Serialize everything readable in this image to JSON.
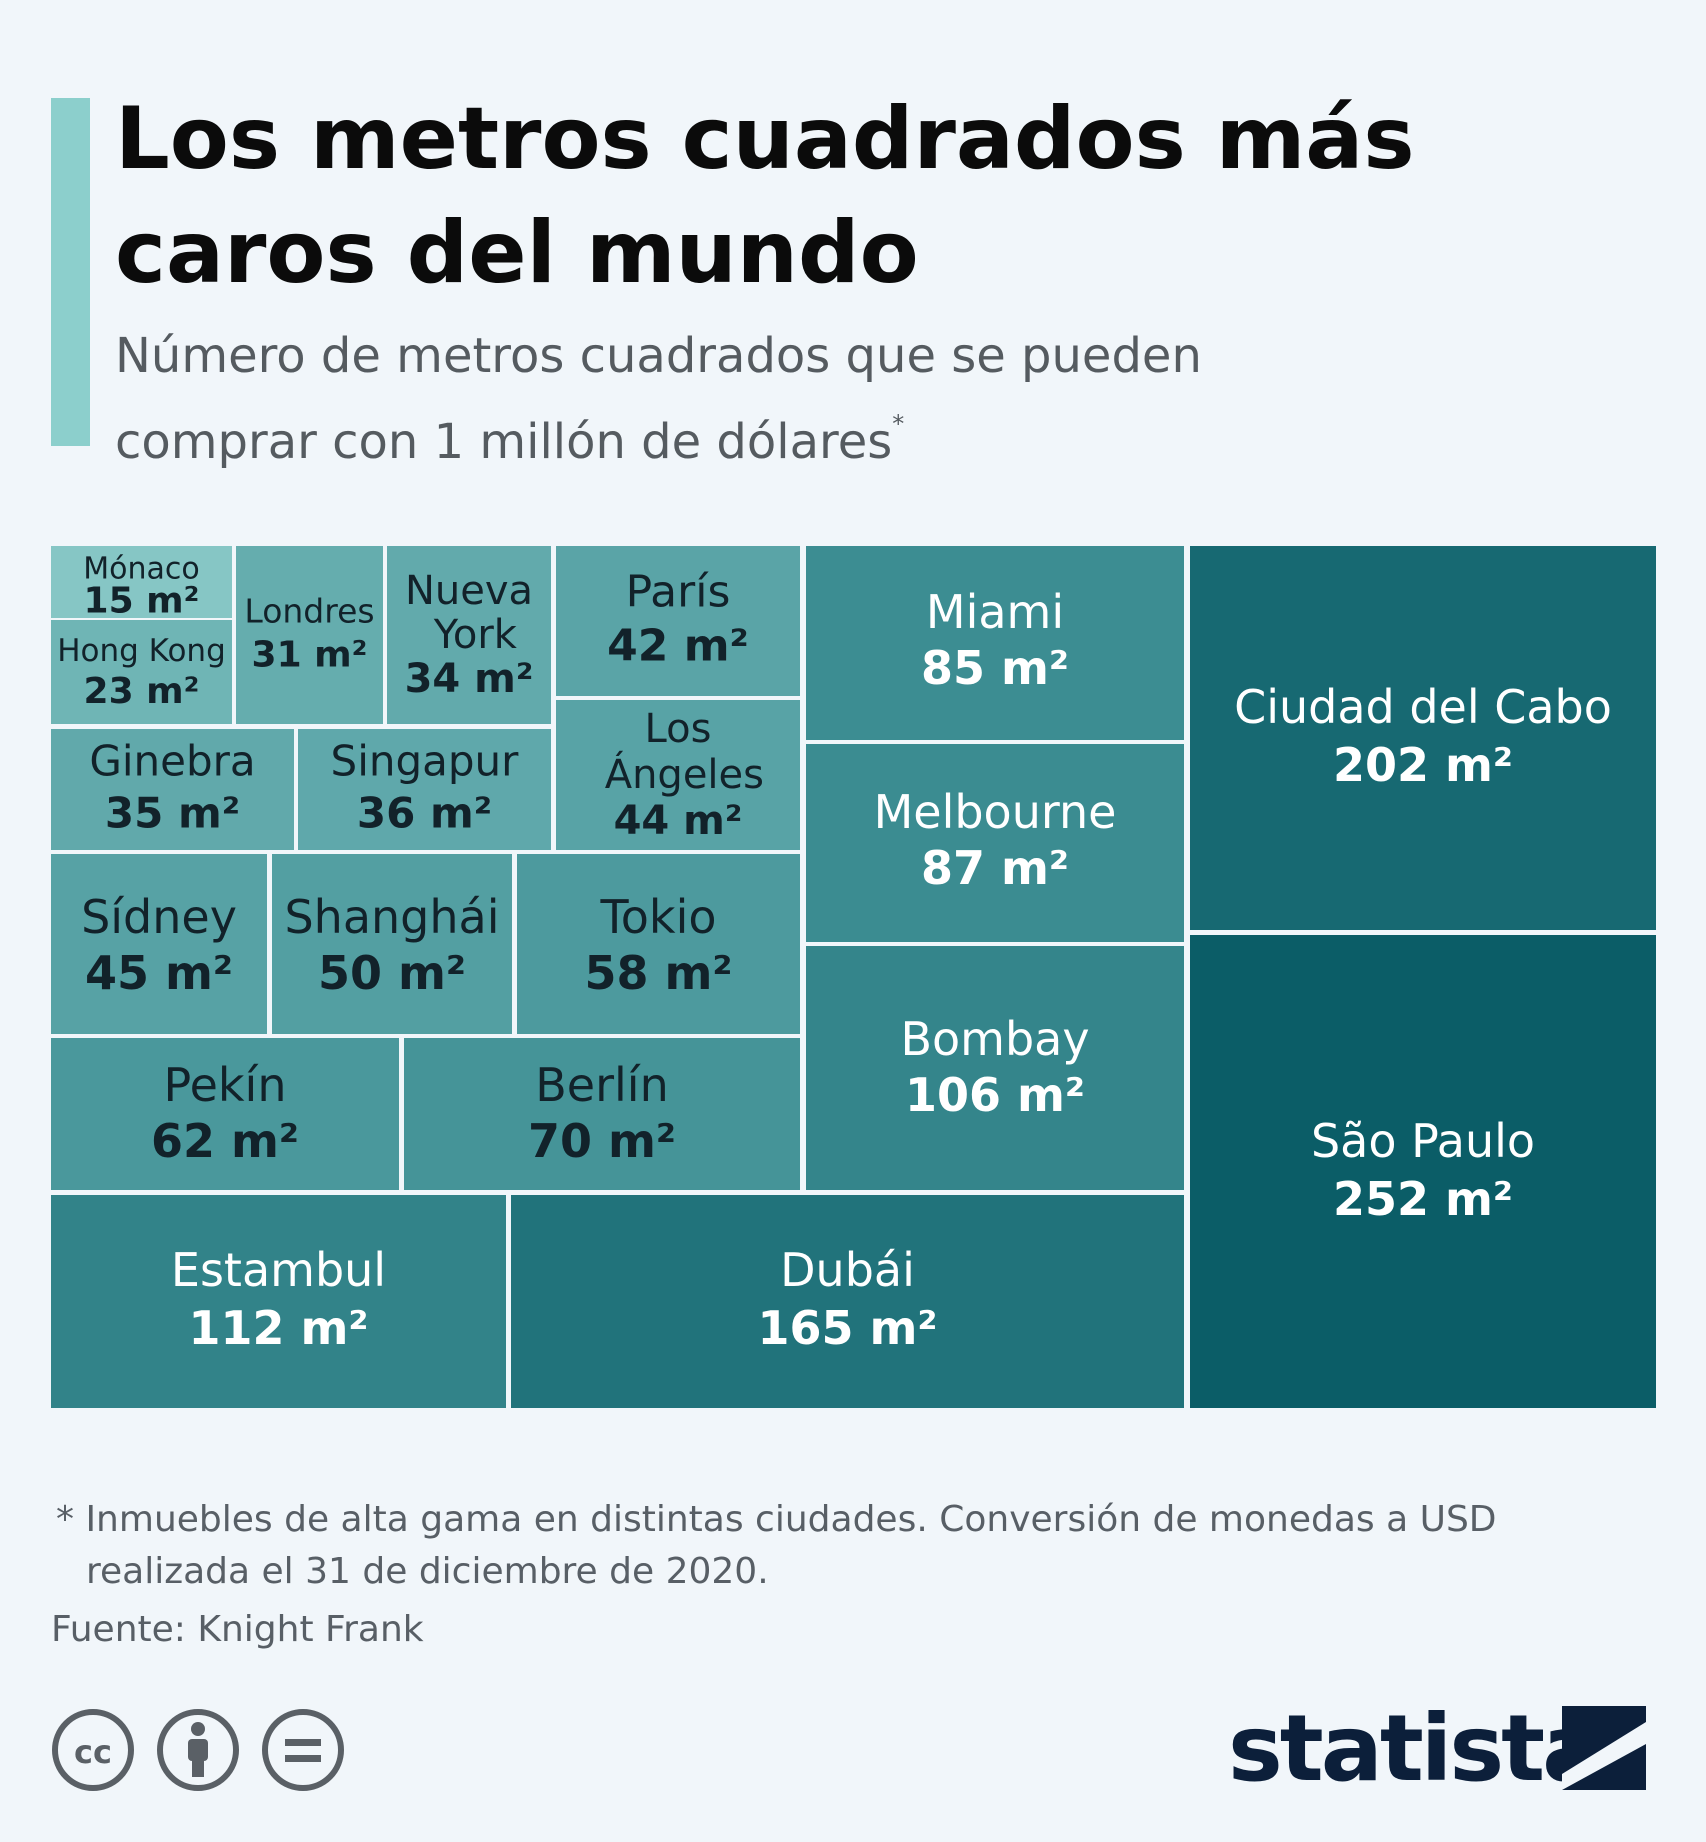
{
  "header": {
    "title": "Los metros cuadrados más caros del mundo",
    "subtitle": "Número de metros cuadrados que se pueden comprar con 1 millón de dólares",
    "subtitle_mark": "*"
  },
  "colors": {
    "accent": "#8ccfcc",
    "page_background": "#f1f6fa",
    "tile_light": "#86c6c5",
    "tile_mid": "#3d8e93",
    "tile_dark": "#0b5d67"
  },
  "chart_data": {
    "type": "treemap",
    "unit": "m²",
    "title": "Los metros cuadrados más caros del mundo",
    "items": [
      {
        "name": "Mónaco",
        "value": 15,
        "label": "15 m²"
      },
      {
        "name": "Hong Kong",
        "value": 23,
        "label": "23 m²"
      },
      {
        "name": "Londres",
        "value": 31,
        "label": "31 m²"
      },
      {
        "name": "Nueva York",
        "value": 34,
        "label": "34 m²"
      },
      {
        "name": "Ginebra",
        "value": 35,
        "label": "35 m²"
      },
      {
        "name": "Singapur",
        "value": 36,
        "label": "36 m²"
      },
      {
        "name": "París",
        "value": 42,
        "label": "42 m²"
      },
      {
        "name": "Los Ángeles",
        "value": 44,
        "label": "44 m²"
      },
      {
        "name": "Sídney",
        "value": 45,
        "label": "45 m²"
      },
      {
        "name": "Shanghái",
        "value": 50,
        "label": "50 m²"
      },
      {
        "name": "Tokio",
        "value": 58,
        "label": "58 m²"
      },
      {
        "name": "Pekín",
        "value": 62,
        "label": "62 m²"
      },
      {
        "name": "Berlín",
        "value": 70,
        "label": "70 m²"
      },
      {
        "name": "Miami",
        "value": 85,
        "label": "85 m²"
      },
      {
        "name": "Melbourne",
        "value": 87,
        "label": "87 m²"
      },
      {
        "name": "Bombay",
        "value": 106,
        "label": "106 m²"
      },
      {
        "name": "Estambul",
        "value": 112,
        "label": "112 m²"
      },
      {
        "name": "Dubái",
        "value": 165,
        "label": "165 m²"
      },
      {
        "name": "Ciudad del Cabo",
        "value": 202,
        "label": "202 m²"
      },
      {
        "name": "São Paulo",
        "value": 252,
        "label": "252 m²"
      }
    ]
  },
  "footer": {
    "footnote_line1": "* Inmuebles de alta gama en distintas ciudades. Conversión de monedas a USD",
    "footnote_line2": "realizada el 31 de diciembre de 2020.",
    "source": "Fuente: Knight Frank",
    "brand": "statista",
    "license_icons": [
      "cc-icon",
      "attribution-icon",
      "no-derivatives-icon"
    ]
  }
}
